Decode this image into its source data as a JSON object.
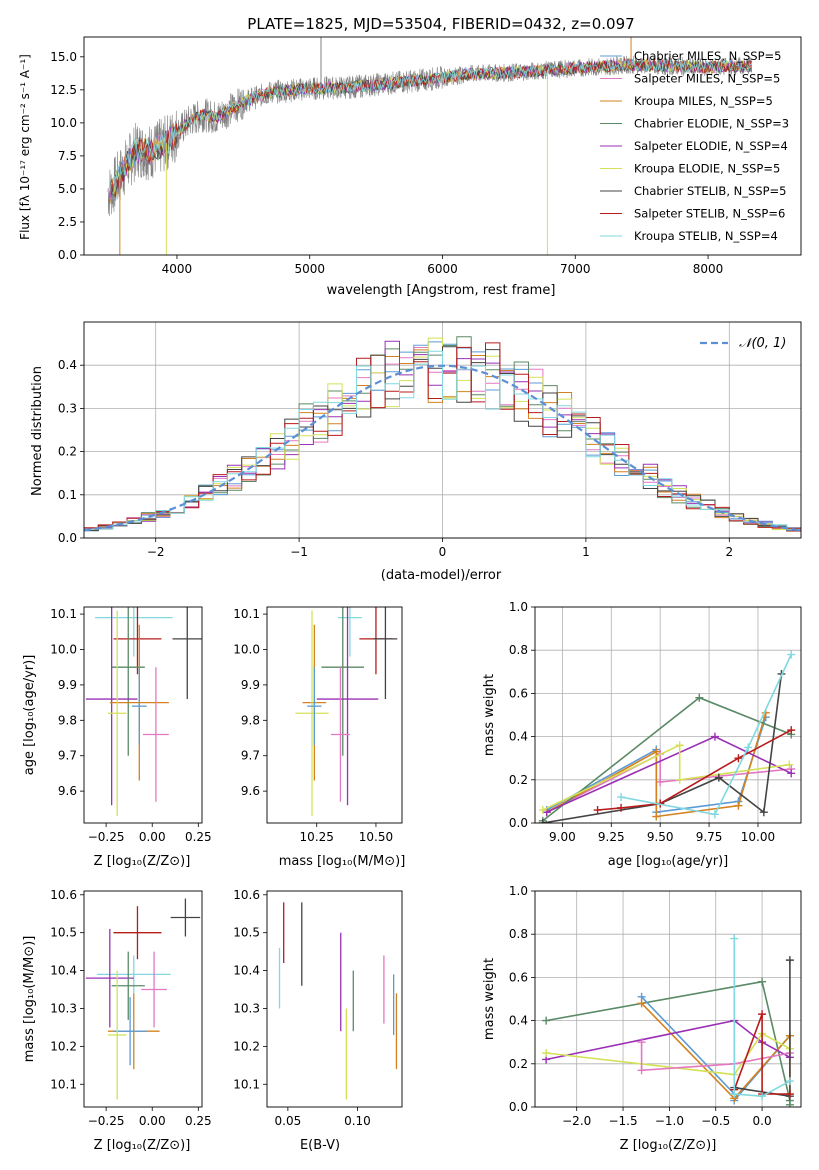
{
  "chart_data": [
    {
      "id": "spectrum",
      "type": "line",
      "title": "PLATE=1825, MJD=53504, FIBERID=0432, z=0.097",
      "xlabel": "wavelength [Angstrom, rest frame]",
      "ylabel": "Flux [fλ 10⁻¹⁷ erg cm⁻² s⁻¹ A⁻¹]",
      "xlim": [
        3300,
        8700
      ],
      "ylim": [
        0,
        16.5
      ],
      "xticks": [
        4000,
        5000,
        6000,
        7000,
        8000
      ],
      "xtick_labels": [
        "4000",
        "5000",
        "6000",
        "7000",
        "8000"
      ],
      "yticks": [
        0,
        2.5,
        5,
        7.5,
        10,
        12.5,
        15
      ],
      "ytick_labels": [
        "0.0",
        "2.5",
        "5.0",
        "7.5",
        "10.0",
        "12.5",
        "15.0"
      ],
      "grid": false,
      "legend_position": "right",
      "data_curve": {
        "color": "#808080",
        "x": [
          3500,
          3600,
          3700,
          3800,
          3900,
          4000,
          4100,
          4200,
          4300,
          4400,
          4500,
          4700,
          5000,
          5300,
          5600,
          5900,
          6200,
          6500,
          6800,
          7100,
          7400,
          7700,
          8000,
          8300
        ],
        "y": [
          4.8,
          6.5,
          8.0,
          7.8,
          8.3,
          9.2,
          10.2,
          10.6,
          10.4,
          11.0,
          11.6,
          12.3,
          12.6,
          12.7,
          13.0,
          13.3,
          13.7,
          13.8,
          14.0,
          14.2,
          14.4,
          14.3,
          14.2,
          14.3
        ]
      },
      "series": [
        {
          "name": "Chabrier MILES, N_SSP=5",
          "color": "#5b9bd5"
        },
        {
          "name": "Salpeter MILES, N_SSP=5",
          "color": "#e377c2"
        },
        {
          "name": "Kroupa MILES, N_SSP=5",
          "color": "#d4821f"
        },
        {
          "name": "Chabrier ELODIE, N_SSP=3",
          "color": "#5a8a66"
        },
        {
          "name": "Salpeter ELODIE, N_SSP=4",
          "color": "#9b30b5"
        },
        {
          "name": "Kroupa ELODIE, N_SSP=5",
          "color": "#d4e157"
        },
        {
          "name": "Chabrier STELIB, N_SSP=5",
          "color": "#444444"
        },
        {
          "name": "Salpeter STELIB, N_SSP=6",
          "color": "#b71c1c"
        },
        {
          "name": "Kroupa STELIB, N_SSP=4",
          "color": "#80d8e0"
        }
      ]
    },
    {
      "id": "residuals",
      "type": "line",
      "xlabel": "(data-model)/error",
      "ylabel": "Normed distribution",
      "xlim": [
        -2.5,
        2.5
      ],
      "ylim": [
        0,
        0.5
      ],
      "xticks": [
        -2,
        -1,
        0,
        1,
        2
      ],
      "xtick_labels": [
        "−2",
        "−1",
        "0",
        "1",
        "2"
      ],
      "yticks": [
        0,
        0.1,
        0.2,
        0.3,
        0.4
      ],
      "ytick_labels": [
        "0.0",
        "0.1",
        "0.2",
        "0.3",
        "0.4"
      ],
      "grid": true,
      "legend": "𝒩(0, 1)",
      "legend_position": "top-right",
      "gaussian_color": "#5b8fd6"
    },
    {
      "id": "age-vs-Z",
      "type": "scatter",
      "xlabel": "Z [log₁₀(Z/Z⊙)]",
      "ylabel": "age  [log₁₀(age/yr)]",
      "xlim": [
        -0.37,
        0.27
      ],
      "ylim": [
        9.51,
        10.12
      ],
      "xticks": [
        -0.25,
        0,
        0.25
      ],
      "xtick_labels": [
        "−0.25",
        "0.00",
        "0.25"
      ],
      "yticks": [
        9.6,
        9.7,
        9.8,
        9.9,
        10.0,
        10.1
      ],
      "ytick_labels": [
        "9.6",
        "9.7",
        "9.8",
        "9.9",
        "10.0",
        "10.1"
      ],
      "points": [
        {
          "color": "#80d8e0",
          "x": -0.1,
          "y": 10.09,
          "xerr": 0.21,
          "yerr": 0.11
        },
        {
          "color": "#b71c1c",
          "x": -0.08,
          "y": 10.03,
          "xerr": 0.13,
          "yerr": 0.1
        },
        {
          "color": "#444444",
          "x": 0.19,
          "y": 10.03,
          "xerr": 0.08,
          "yerr": 0.17
        },
        {
          "color": "#5a8a66",
          "x": -0.13,
          "y": 9.95,
          "xerr": 0.09,
          "yerr": 0.25
        },
        {
          "color": "#9b30b5",
          "x": -0.22,
          "y": 9.86,
          "xerr": 0.14,
          "yerr": 0.3
        },
        {
          "color": "#d4821f",
          "x": -0.07,
          "y": 9.85,
          "xerr": 0.16,
          "yerr": 0.22
        },
        {
          "color": "#d4e157",
          "x": -0.19,
          "y": 9.82,
          "xerr": 0.05,
          "yerr": 0.29
        },
        {
          "color": "#5b9bd5",
          "x": -0.07,
          "y": 9.84,
          "xerr": 0.04,
          "yerr": 0.11
        },
        {
          "color": "#e377c2",
          "x": 0.02,
          "y": 9.76,
          "xerr": 0.07,
          "yerr": 0.19
        }
      ]
    },
    {
      "id": "age-vs-mass",
      "type": "scatter",
      "xlabel": "mass [log₁₀(M/M⊙)]",
      "xlim": [
        10.04,
        10.61
      ],
      "ylim": [
        9.51,
        10.12
      ],
      "xticks": [
        10.25,
        10.5
      ],
      "xtick_labels": [
        "10.25",
        "10.50"
      ],
      "yticks": [
        9.6,
        9.7,
        9.8,
        9.9,
        10.0,
        10.1
      ],
      "ytick_labels": [
        "9.6",
        "9.7",
        "9.8",
        "9.9",
        "10.0",
        "10.1"
      ],
      "points": [
        {
          "color": "#80d8e0",
          "x": 10.39,
          "y": 10.09,
          "xerr": 0.05,
          "yerr": 0.11
        },
        {
          "color": "#b71c1c",
          "x": 10.5,
          "y": 10.03,
          "xerr": 0.07,
          "yerr": 0.1
        },
        {
          "color": "#444444",
          "x": 10.54,
          "y": 10.03,
          "xerr": 0.05,
          "yerr": 0.17
        },
        {
          "color": "#5a8a66",
          "x": 10.36,
          "y": 9.95,
          "xerr": 0.09,
          "yerr": 0.25
        },
        {
          "color": "#9b30b5",
          "x": 10.38,
          "y": 9.86,
          "xerr": 0.13,
          "yerr": 0.3
        },
        {
          "color": "#d4821f",
          "x": 10.24,
          "y": 9.85,
          "xerr": 0.05,
          "yerr": 0.22
        },
        {
          "color": "#d4e157",
          "x": 10.23,
          "y": 9.82,
          "xerr": 0.07,
          "yerr": 0.29
        },
        {
          "color": "#5b9bd5",
          "x": 10.24,
          "y": 9.84,
          "xerr": 0.03,
          "yerr": 0.11
        },
        {
          "color": "#e377c2",
          "x": 10.35,
          "y": 9.76,
          "xerr": 0.04,
          "yerr": 0.19
        }
      ]
    },
    {
      "id": "weight-vs-age",
      "type": "line",
      "xlabel": "age  [log₁₀(age/yr)]",
      "ylabel": "mass weight",
      "xlim": [
        8.86,
        10.22
      ],
      "ylim": [
        0,
        1
      ],
      "xticks": [
        9.0,
        9.25,
        9.5,
        9.75,
        10.0
      ],
      "xtick_labels": [
        "9.00",
        "9.25",
        "9.50",
        "9.75",
        "10.00"
      ],
      "yticks": [
        0,
        0.2,
        0.4,
        0.6,
        0.8,
        1.0
      ],
      "ytick_labels": [
        "0.0",
        "0.2",
        "0.4",
        "0.6",
        "0.8",
        "1.0"
      ],
      "grid": true,
      "series": [
        {
          "color": "#5b9bd5",
          "x": [
            8.92,
            9.48,
            9.48,
            9.9,
            10.04
          ],
          "y": [
            0.06,
            0.34,
            0.05,
            0.1,
            0.49
          ]
        },
        {
          "color": "#e377c2",
          "x": [
            8.92,
            9.5,
            9.5,
            10.17
          ],
          "y": [
            0.05,
            0.32,
            0.19,
            0.25
          ]
        },
        {
          "color": "#d4821f",
          "x": [
            8.92,
            9.48,
            9.48,
            9.9,
            10.04
          ],
          "y": [
            0.05,
            0.33,
            0.03,
            0.08,
            0.51
          ]
        },
        {
          "color": "#5a8a66",
          "x": [
            8.9,
            9.7,
            10.17
          ],
          "y": [
            0.01,
            0.58,
            0.41
          ]
        },
        {
          "color": "#9b30b5",
          "x": [
            8.92,
            9.78,
            10.17
          ],
          "y": [
            0.05,
            0.4,
            0.23
          ]
        },
        {
          "color": "#d4e157",
          "x": [
            8.9,
            9.6,
            9.6,
            10.16
          ],
          "y": [
            0.06,
            0.36,
            0.2,
            0.27
          ]
        },
        {
          "color": "#444444",
          "x": [
            8.9,
            9.5,
            9.8,
            10.03,
            10.12
          ],
          "y": [
            0.0,
            0.09,
            0.21,
            0.05,
            0.69
          ]
        },
        {
          "color": "#b71c1c",
          "x": [
            9.18,
            9.3,
            9.5,
            9.9,
            10.17
          ],
          "y": [
            0.06,
            0.07,
            0.09,
            0.3,
            0.43
          ]
        },
        {
          "color": "#80d8e0",
          "x": [
            9.3,
            9.78,
            9.95,
            10.17
          ],
          "y": [
            0.12,
            0.04,
            0.35,
            0.78
          ]
        }
      ]
    },
    {
      "id": "mass-vs-Z",
      "type": "scatter",
      "xlabel": "Z [log₁₀(Z/Z⊙)]",
      "ylabel": "mass [log₁₀(M/M⊙)]",
      "xlim": [
        -0.37,
        0.27
      ],
      "ylim": [
        10.04,
        10.61
      ],
      "xticks": [
        -0.25,
        0,
        0.25
      ],
      "xtick_labels": [
        "−0.25",
        "0.00",
        "0.25"
      ],
      "yticks": [
        10.1,
        10.2,
        10.3,
        10.4,
        10.5,
        10.6
      ],
      "ytick_labels": [
        "10.1",
        "10.2",
        "10.3",
        "10.4",
        "10.5",
        "10.6"
      ],
      "points": [
        {
          "color": "#b71c1c",
          "x": -0.08,
          "y": 10.5,
          "xerr": 0.13,
          "yerr": 0.07
        },
        {
          "color": "#444444",
          "x": 0.18,
          "y": 10.54,
          "xerr": 0.08,
          "yerr": 0.05
        },
        {
          "color": "#80d8e0",
          "x": -0.1,
          "y": 10.39,
          "xerr": 0.2,
          "yerr": 0.05
        },
        {
          "color": "#9b30b5",
          "x": -0.23,
          "y": 10.38,
          "xerr": 0.13,
          "yerr": 0.13
        },
        {
          "color": "#5a8a66",
          "x": -0.13,
          "y": 10.36,
          "xerr": 0.09,
          "yerr": 0.09
        },
        {
          "color": "#e377c2",
          "x": 0.01,
          "y": 10.35,
          "xerr": 0.07,
          "yerr": 0.1
        },
        {
          "color": "#d4821f",
          "x": -0.1,
          "y": 10.24,
          "xerr": 0.14,
          "yerr": 0.1
        },
        {
          "color": "#5b9bd5",
          "x": -0.12,
          "y": 10.24,
          "xerr": 0.09,
          "yerr": 0.09
        },
        {
          "color": "#d4e157",
          "x": -0.19,
          "y": 10.23,
          "xerr": 0.05,
          "yerr": 0.17
        }
      ]
    },
    {
      "id": "mass-vs-EBV",
      "type": "scatter",
      "xlabel": "E(B-V)",
      "xlim": [
        0.035,
        0.132
      ],
      "ylim": [
        10.04,
        10.61
      ],
      "xticks": [
        0.05,
        0.1
      ],
      "xtick_labels": [
        "0.05",
        "0.10"
      ],
      "yticks": [
        10.1,
        10.2,
        10.3,
        10.4,
        10.5,
        10.6
      ],
      "ytick_labels": [
        "10.1",
        "10.2",
        "10.3",
        "10.4",
        "10.5",
        "10.6"
      ],
      "points": [
        {
          "color": "#b71c1c",
          "x": 0.047,
          "y": 10.5,
          "yerr": 0.08
        },
        {
          "color": "#444444",
          "x": 0.06,
          "y": 10.47,
          "yerr": 0.11
        },
        {
          "color": "#80d8e0",
          "x": 0.044,
          "y": 10.38,
          "yerr": 0.08
        },
        {
          "color": "#9b30b5",
          "x": 0.088,
          "y": 10.37,
          "yerr": 0.13
        },
        {
          "color": "#5a8a66",
          "x": 0.097,
          "y": 10.32,
          "yerr": 0.08
        },
        {
          "color": "#e377c2",
          "x": 0.119,
          "y": 10.35,
          "yerr": 0.09
        },
        {
          "color": "#d4e157",
          "x": 0.092,
          "y": 10.18,
          "yerr": 0.12
        },
        {
          "color": "#d4821f",
          "x": 0.128,
          "y": 10.24,
          "yerr": 0.1
        },
        {
          "color": "#5b9bd5",
          "x": 0.126,
          "y": 10.31,
          "yerr": 0.08
        }
      ]
    },
    {
      "id": "weight-vs-Z",
      "type": "line",
      "xlabel": "Z [log₁₀(Z/Z⊙)]",
      "ylabel": "mass weight",
      "xlim": [
        -2.45,
        0.42
      ],
      "ylim": [
        0,
        1
      ],
      "xticks": [
        -2.0,
        -1.5,
        -1.0,
        -0.5,
        0.0
      ],
      "xtick_labels": [
        "−2.0",
        "−1.5",
        "−1.0",
        "−0.5",
        "0.0"
      ],
      "yticks": [
        0,
        0.2,
        0.4,
        0.6,
        0.8,
        1.0
      ],
      "ytick_labels": [
        "0.0",
        "0.2",
        "0.4",
        "0.6",
        "0.8",
        "1.0"
      ],
      "grid": true,
      "series": [
        {
          "color": "#5a8a66",
          "x": [
            -2.33,
            0.0,
            0.3,
            0.3
          ],
          "y": [
            0.4,
            0.58,
            0.03,
            0.01
          ]
        },
        {
          "color": "#5b9bd5",
          "x": [
            -1.3,
            -0.3,
            -0.3,
            0.3
          ],
          "y": [
            0.51,
            0.06,
            0.03,
            0.33
          ]
        },
        {
          "color": "#d4821f",
          "x": [
            -1.3,
            -0.3,
            0.3,
            0.3
          ],
          "y": [
            0.48,
            0.04,
            0.33,
            0.06
          ]
        },
        {
          "color": "#9b30b5",
          "x": [
            -2.33,
            -0.3,
            0.0,
            0.3
          ],
          "y": [
            0.22,
            0.4,
            0.3,
            0.23
          ]
        },
        {
          "color": "#d4e157",
          "x": [
            -2.33,
            -0.3,
            0.0,
            0.3
          ],
          "y": [
            0.25,
            0.15,
            0.34,
            0.27
          ]
        },
        {
          "color": "#e377c2",
          "x": [
            -1.3,
            -1.3,
            -0.3,
            0.3
          ],
          "y": [
            0.3,
            0.17,
            0.2,
            0.25
          ]
        },
        {
          "color": "#444444",
          "x": [
            -0.3,
            0.3,
            0.3
          ],
          "y": [
            0.09,
            0.05,
            0.68
          ]
        },
        {
          "color": "#b71c1c",
          "x": [
            -0.3,
            0.0,
            0.0,
            0.3
          ],
          "y": [
            0.08,
            0.43,
            0.06,
            0.06
          ]
        },
        {
          "color": "#80d8e0",
          "x": [
            -0.3,
            -0.3,
            0.0,
            0.3
          ],
          "y": [
            0.78,
            0.06,
            0.05,
            0.12
          ]
        }
      ]
    }
  ]
}
